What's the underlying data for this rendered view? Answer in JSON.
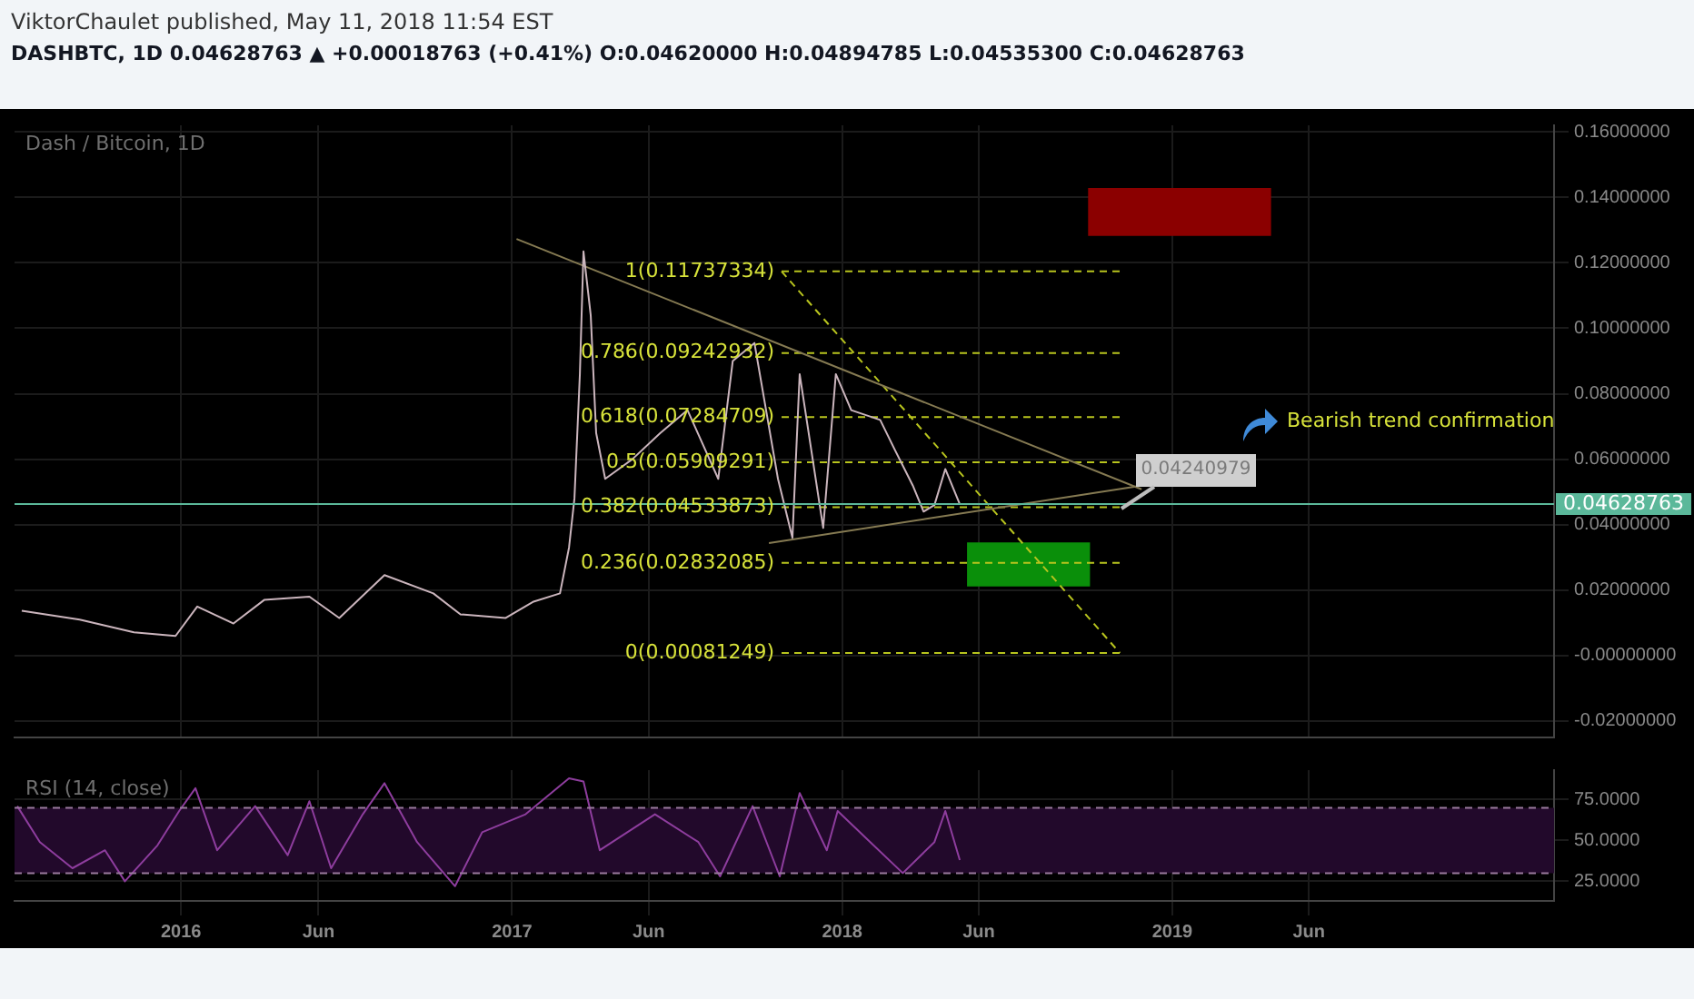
{
  "chart_data": [
    {
      "type": "line",
      "title": "Dash / Bitcoin, 1D",
      "subtitle": "DASHBTC, 1D 0.04628763 ▲ +0.00018763 (+0.41%) O:0.04620000 H:0.04894785 L:0.04535300 C:0.04628763",
      "annotations": [
        "ViktorChaulet published, May 11, 2018 11:54 EST",
        "0.04240979",
        "Bearish trend confirmation"
      ],
      "xlim": [
        "2015-07-01",
        "2020-02-27"
      ],
      "xticks": [
        {
          "value": "2016",
          "label": null
        },
        {
          "value": "2016-06",
          "label": null
        },
        {
          "value": "2017",
          "label": null
        },
        {
          "value": "2017-06",
          "label": null
        },
        {
          "value": "2018",
          "label": null
        },
        {
          "value": "2018-06",
          "label": null
        },
        {
          "value": "2019",
          "label": null
        },
        {
          "value": "2019-06",
          "label": null
        }
      ],
      "ylim": [
        -0.025,
        0.162
      ],
      "yticks": [
        {
          "value": -0.02,
          "label": "-0.02000000"
        },
        {
          "value": 0,
          "label": "-0.00000000"
        },
        {
          "value": 0.02,
          "label": "0.02000000"
        },
        {
          "value": 0.04,
          "label": "0.04000000"
        },
        {
          "value": 0.06,
          "label": "0.06000000"
        },
        {
          "value": 0.08,
          "label": "0.08000000"
        },
        {
          "value": 0.1,
          "label": "0.10000000"
        },
        {
          "value": 0.12,
          "label": "0.12000000"
        },
        {
          "value": 0.14,
          "label": "0.14000000"
        },
        {
          "value": 0.16,
          "label": "0.16000000"
        }
      ],
      "grid": true,
      "tick_labels": "y",
      "ref_lines": [
        {
          "axis": "y",
          "value": 0.04628763,
          "label": "0.04628763",
          "color": "#5bb89a"
        }
      ],
      "series": [
        {
          "type": "bar",
          "color": "#8b0000",
          "x": [
            "2019-01-09"
          ],
          "base": [
            0.1284
          ],
          "values": [
            0.0143
          ]
        },
        {
          "type": "bar",
          "color": "#0a8f0a",
          "x": [
            "2018-07-26"
          ],
          "base": [
            0.0213
          ],
          "values": [
            0.0131
          ]
        },
        {
          "type": "line",
          "color": "#cbb5bd",
          "x": [
            "2015-07-09",
            "2015-09-11",
            "2015-11-10",
            "2015-12-26",
            "2016-01-19",
            "2016-02-28",
            "2016-04-02",
            "2016-05-22",
            "2016-06-24",
            "2016-08-13",
            "2016-10-06",
            "2016-11-05",
            "2016-12-25",
            "2017-01-24",
            "2017-02-23",
            "2017-03-05",
            "2017-03-11",
            "2017-03-17",
            "2017-03-21",
            "2017-03-29",
            "2017-04-04",
            "2017-04-14",
            "2017-05-14",
            "2017-06-14",
            "2017-07-14",
            "2017-08-17",
            "2017-09-02",
            "2017-09-26",
            "2017-10-22",
            "2017-11-07",
            "2017-11-15",
            "2017-12-11",
            "2017-12-25",
            "2018-01-11",
            "2018-02-12",
            "2018-02-28",
            "2018-03-20",
            "2018-04-01",
            "2018-04-13",
            "2018-04-25",
            "2018-05-11"
          ],
          "values": [
            0.0137,
            0.011,
            0.0071,
            0.006,
            0.015,
            0.0098,
            0.017,
            0.018,
            0.0115,
            0.0246,
            0.019,
            0.0126,
            0.0115,
            0.0164,
            0.019,
            0.033,
            0.048,
            0.086,
            0.1235,
            0.104,
            0.068,
            0.054,
            0.06,
            0.068,
            0.075,
            0.054,
            0.09,
            0.0955,
            0.054,
            0.036,
            0.086,
            0.039,
            0.086,
            0.075,
            0.072,
            0.063,
            0.052,
            0.044,
            0.046,
            0.057,
            0.04628763
          ]
        },
        {
          "type": "line",
          "color": "#857a52",
          "x": [
            "2017-01-06",
            "2018-11-28"
          ],
          "values": [
            0.1273,
            0.0508
          ]
        },
        {
          "type": "line",
          "color": "#857a52",
          "x": [
            "2017-10-12",
            "2018-11-28"
          ],
          "values": [
            0.0344,
            0.0519
          ]
        },
        {
          "type": "line",
          "color": "#b8c41e",
          "line_style": "dashed",
          "x": [
            "2017-10-26",
            "2018-11-04"
          ],
          "values": [
            0.11737334,
            0.00081249
          ]
        },
        {
          "type": "line",
          "name": "1(0.11737334)",
          "color": "#b8c41e",
          "line_style": "dashed",
          "x": [
            "2017-10-26",
            "2018-11-04"
          ],
          "values": [
            0.11737334,
            0.11737334
          ]
        },
        {
          "type": "line",
          "name": "0.786(0.09242932)",
          "color": "#b8c41e",
          "line_style": "dashed",
          "x": [
            "2017-10-26",
            "2018-11-04"
          ],
          "values": [
            0.09242932,
            0.09242932
          ]
        },
        {
          "type": "line",
          "name": "0.618(0.07284709)",
          "color": "#b8c41e",
          "line_style": "dashed",
          "x": [
            "2017-10-26",
            "2018-11-04"
          ],
          "values": [
            0.07284709,
            0.07284709
          ]
        },
        {
          "type": "line",
          "name": "0.5(0.05909291)",
          "color": "#b8c41e",
          "line_style": "dashed",
          "x": [
            "2017-10-26",
            "2018-11-04"
          ],
          "values": [
            0.05909291,
            0.05909291
          ]
        },
        {
          "type": "line",
          "name": "0.382(0.04533873)",
          "color": "#b8c41e",
          "line_style": "dashed",
          "x": [
            "2017-10-26",
            "2018-11-04"
          ],
          "values": [
            0.04533873,
            0.04533873
          ]
        },
        {
          "type": "line",
          "name": "0.236(0.02832085)",
          "color": "#b8c41e",
          "line_style": "dashed",
          "x": [
            "2017-10-26",
            "2018-11-04"
          ],
          "values": [
            0.02832085,
            0.02832085
          ]
        },
        {
          "type": "line",
          "name": "0(0.00081249)",
          "color": "#b8c41e",
          "line_style": "dashed",
          "x": [
            "2017-10-26",
            "2018-11-04"
          ],
          "values": [
            0.00081249,
            0.00081249
          ]
        }
      ]
    },
    {
      "type": "line",
      "title": "RSI (14, close)",
      "xlim": [
        "2015-07-01",
        "2020-02-27"
      ],
      "xticks": [
        {
          "value": "2016",
          "label": "2016"
        },
        {
          "value": "2016-06",
          "label": "Jun"
        },
        {
          "value": "2017",
          "label": "2017"
        },
        {
          "value": "2017-06",
          "label": "Jun"
        },
        {
          "value": "2018",
          "label": "2018"
        },
        {
          "value": "2018-06",
          "label": "Jun"
        },
        {
          "value": "2019",
          "label": "2019"
        },
        {
          "value": "2019-06",
          "label": "Jun"
        }
      ],
      "ylim": [
        13,
        93
      ],
      "yticks": [
        {
          "value": 25,
          "label": "25.0000"
        },
        {
          "value": 50,
          "label": "50.0000"
        },
        {
          "value": 75,
          "label": "75.0000"
        }
      ],
      "grid": true,
      "bands": [
        {
          "axis": "y",
          "from": 30,
          "to": 70,
          "color": "#22092b"
        }
      ],
      "ref_lines": [
        {
          "axis": "y",
          "value": 70,
          "color": "#9a7a9e",
          "line_style": "dashed"
        },
        {
          "axis": "y",
          "value": 30,
          "color": "#9a7a9e",
          "line_style": "dashed"
        }
      ],
      "series": [
        {
          "color": "#8e3d9e",
          "x": [
            "2015-07-04",
            "2015-07-29",
            "2015-09-03",
            "2015-10-09",
            "2015-10-31",
            "2015-12-06",
            "2015-12-30",
            "2016-01-17",
            "2016-02-10",
            "2016-03-23",
            "2016-04-28",
            "2016-05-22",
            "2016-06-15",
            "2016-07-20",
            "2016-08-13",
            "2016-09-18",
            "2016-10-30",
            "2016-11-29",
            "2017-01-16",
            "2017-03-05",
            "2017-03-21",
            "2017-04-08",
            "2017-06-08",
            "2017-07-26",
            "2017-08-19",
            "2017-09-24",
            "2017-10-24",
            "2017-11-15",
            "2017-12-15",
            "2017-12-27",
            "2018-02-01",
            "2018-03-09",
            "2018-04-13",
            "2018-04-25",
            "2018-05-11"
          ],
          "values": [
            71,
            49,
            33,
            44,
            25,
            47,
            68,
            82,
            44,
            71,
            41,
            74,
            33,
            66,
            85,
            49,
            22,
            55,
            66,
            88,
            86,
            44,
            66,
            49,
            28,
            71,
            28,
            79,
            44,
            68,
            49,
            30,
            49,
            68,
            38
          ]
        }
      ]
    }
  ]
}
